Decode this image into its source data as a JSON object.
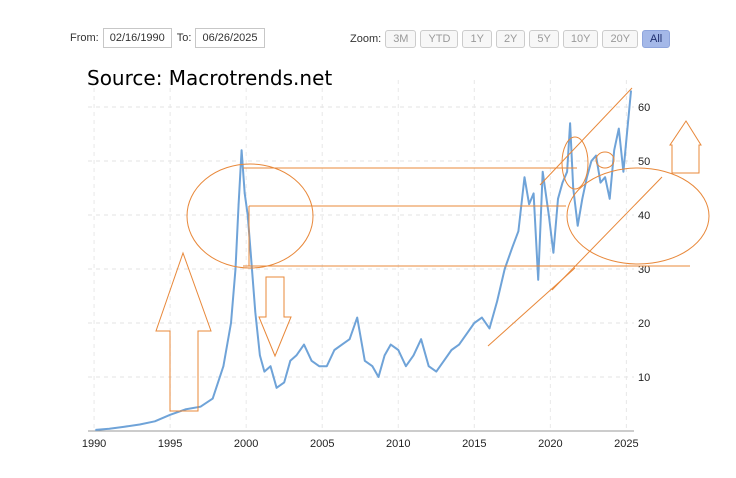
{
  "range": {
    "from_label": "From:",
    "from_value": "02/16/1990",
    "to_label": "To:",
    "to_value": "06/26/2025"
  },
  "zoom": {
    "label": "Zoom:",
    "buttons": [
      "3M",
      "YTD",
      "1Y",
      "2Y",
      "5Y",
      "10Y",
      "20Y",
      "All"
    ],
    "active": "All"
  },
  "source_text": "Source: Macrotrends.net",
  "chart_data": {
    "type": "line",
    "title": "",
    "xlabel": "",
    "ylabel": "",
    "xlim": [
      1989.6,
      2025.5
    ],
    "ylim": [
      0,
      65
    ],
    "x_ticks": [
      "1990",
      "1995",
      "2000",
      "2005",
      "2010",
      "2015",
      "2020",
      "2025"
    ],
    "y_ticks": [
      "10",
      "20",
      "30",
      "40",
      "50",
      "60"
    ],
    "grid": true,
    "line_color": "#6fa3d8",
    "annotation_color": "#e8883a",
    "x": [
      1990.1,
      1991,
      1992,
      1993,
      1994,
      1995,
      1996,
      1997,
      1997.8,
      1998.5,
      1999,
      1999.3,
      1999.5,
      1999.7,
      1999.9,
      2000.1,
      2000.3,
      2000.6,
      2000.9,
      2001.2,
      2001.6,
      2002,
      2002.5,
      2002.9,
      2003.3,
      2003.8,
      2004.3,
      2004.8,
      2005.3,
      2005.8,
      2006.3,
      2006.8,
      2007.3,
      2007.8,
      2008.3,
      2008.7,
      2009.1,
      2009.5,
      2010,
      2010.5,
      2011,
      2011.5,
      2012,
      2012.5,
      2013,
      2013.5,
      2014,
      2014.5,
      2015,
      2015.5,
      2016,
      2016.5,
      2017,
      2017.5,
      2017.9,
      2018.3,
      2018.6,
      2018.9,
      2019.2,
      2019.5,
      2019.9,
      2020.2,
      2020.5,
      2020.8,
      2021.1,
      2021.3,
      2021.5,
      2021.8,
      2022.1,
      2022.4,
      2022.7,
      2023,
      2023.3,
      2023.6,
      2023.9,
      2024.2,
      2024.5,
      2024.8,
      2025.0,
      2025.3
    ],
    "y": [
      0.2,
      0.4,
      0.8,
      1.2,
      1.8,
      3,
      4,
      4.5,
      6,
      12,
      20,
      30,
      42,
      52,
      44,
      40,
      33,
      22,
      14,
      11,
      12,
      8,
      9,
      13,
      14,
      16,
      13,
      12,
      12,
      15,
      16,
      17,
      21,
      13,
      12,
      10,
      14,
      16,
      15,
      12,
      14,
      17,
      12,
      11,
      13,
      15,
      16,
      18,
      20,
      21,
      19,
      24,
      30,
      34,
      37,
      47,
      42,
      44,
      28,
      48,
      40,
      33,
      43,
      46,
      48,
      57,
      45,
      38,
      43,
      47,
      50,
      51,
      46,
      47,
      43,
      52,
      56,
      48,
      54,
      63
    ]
  }
}
